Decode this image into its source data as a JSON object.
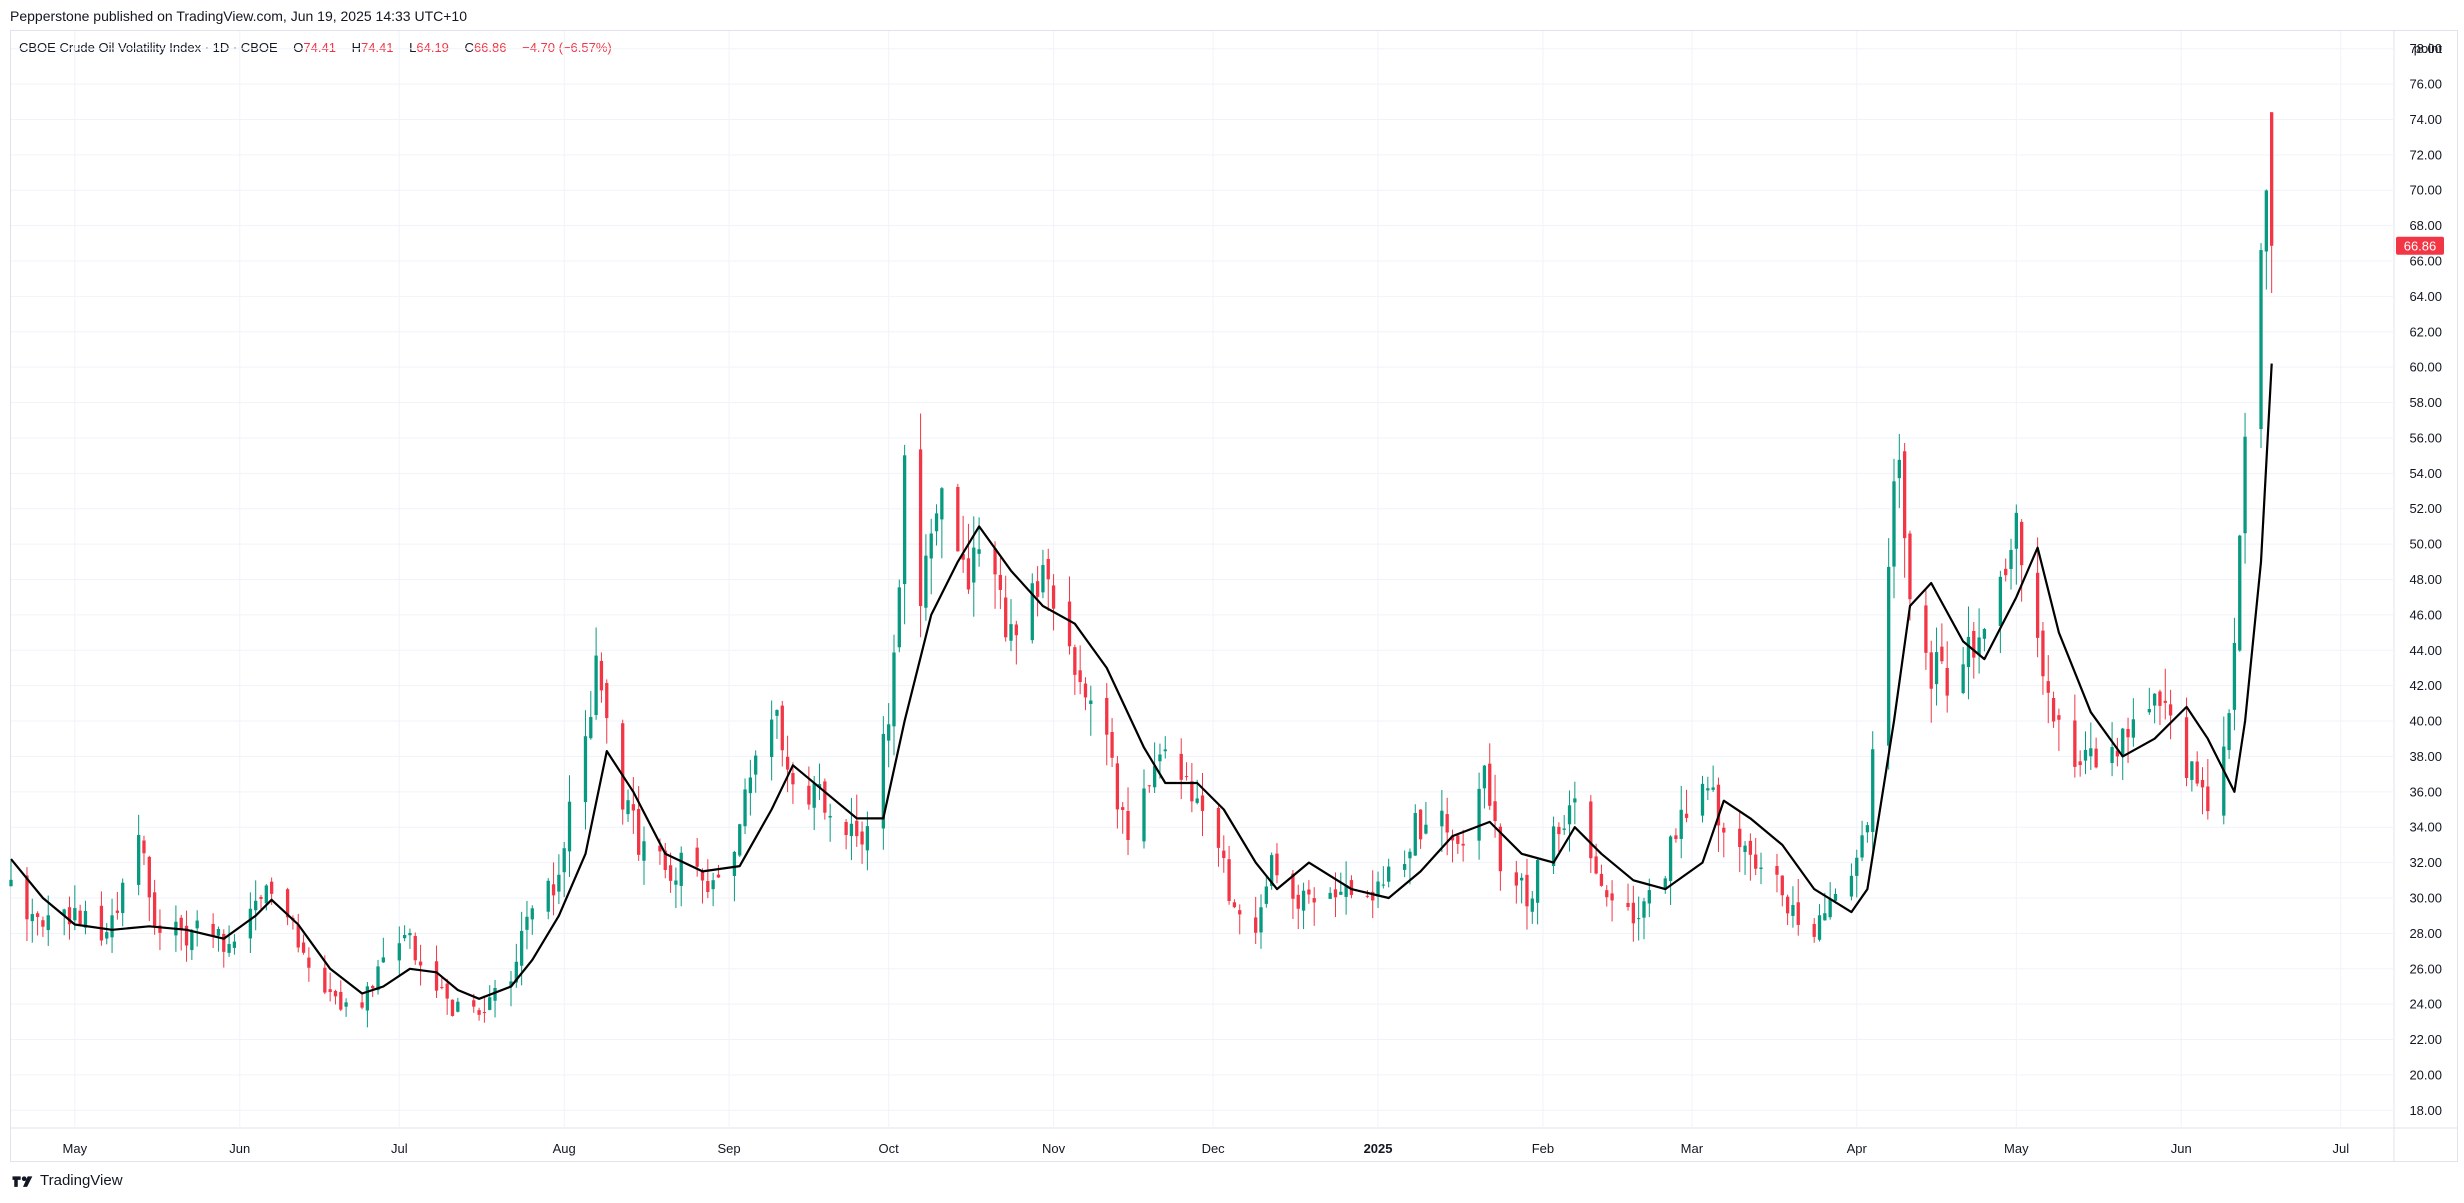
{
  "header": {
    "published": "Pepperstone published on TradingView.com, Jun 19, 2025 14:33 UTC+10"
  },
  "legend": {
    "symbol": "CBOE Crude Oil Volatility Index · 1D · CBOE",
    "o_label": "O",
    "o_value": "74.41",
    "h_label": "H",
    "h_value": "74.41",
    "l_label": "L",
    "l_value": "64.19",
    "c_label": "C",
    "c_value": "66.86",
    "change": "−4.70 (−6.57%)"
  },
  "footer": {
    "brand": "TradingView"
  },
  "colors": {
    "up": "#089981",
    "down": "#f23645",
    "ma": "#000000",
    "grid": "#f0f3fa",
    "axis_text": "#131722"
  },
  "chart_data": {
    "type": "candlestick",
    "unit_label": "point",
    "last_price": "66.86",
    "ylim": [
      17,
      79
    ],
    "y_ticks": [
      "18.00",
      "20.00",
      "22.00",
      "24.00",
      "26.00",
      "28.00",
      "30.00",
      "32.00",
      "34.00",
      "36.00",
      "38.00",
      "40.00",
      "42.00",
      "44.00",
      "46.00",
      "48.00",
      "50.00",
      "52.00",
      "54.00",
      "56.00",
      "58.00",
      "60.00",
      "62.00",
      "64.00",
      "66.00",
      "68.00",
      "70.00",
      "72.00",
      "74.00",
      "76.00",
      "78.00"
    ],
    "x_ticks": [
      {
        "label": "May",
        "date": "2024-05-01"
      },
      {
        "label": "Jun",
        "date": "2024-06-01"
      },
      {
        "label": "Jul",
        "date": "2024-07-01"
      },
      {
        "label": "Aug",
        "date": "2024-08-01"
      },
      {
        "label": "Sep",
        "date": "2024-09-01"
      },
      {
        "label": "Oct",
        "date": "2024-10-01"
      },
      {
        "label": "Nov",
        "date": "2024-11-01"
      },
      {
        "label": "Dec",
        "date": "2024-12-01"
      },
      {
        "label": "2025",
        "date": "2025-01-01"
      },
      {
        "label": "Feb",
        "date": "2025-02-01"
      },
      {
        "label": "Mar",
        "date": "2025-03-01"
      },
      {
        "label": "Apr",
        "date": "2025-04-01"
      },
      {
        "label": "May",
        "date": "2025-05-01"
      },
      {
        "label": "Jun",
        "date": "2025-06-01"
      },
      {
        "label": "Jul",
        "date": "2025-07-01"
      }
    ],
    "x_start": "2024-04-19",
    "x_end": "2025-07-11",
    "series": [
      {
        "name": "Candles",
        "path_points": [
          [
            "2024-04-19",
            30.5
          ],
          [
            "2024-04-25",
            28.5
          ],
          [
            "2024-05-01",
            28.8
          ],
          [
            "2024-05-06",
            28.0
          ],
          [
            "2024-05-09",
            29.5
          ],
          [
            "2024-05-13",
            34.0
          ],
          [
            "2024-05-16",
            28.5
          ],
          [
            "2024-05-22",
            28.0
          ],
          [
            "2024-05-27",
            28.3
          ],
          [
            "2024-05-31",
            27.0
          ],
          [
            "2024-06-04",
            30.5
          ],
          [
            "2024-06-07",
            29.8
          ],
          [
            "2024-06-10",
            28.5
          ],
          [
            "2024-06-13",
            27.0
          ],
          [
            "2024-06-17",
            25.0
          ],
          [
            "2024-06-20",
            24.0
          ],
          [
            "2024-06-25",
            24.5
          ],
          [
            "2024-06-28",
            26.5
          ],
          [
            "2024-07-03",
            27.5
          ],
          [
            "2024-07-08",
            25.0
          ],
          [
            "2024-07-11",
            24.0
          ],
          [
            "2024-07-15",
            23.5
          ],
          [
            "2024-07-18",
            24.5
          ],
          [
            "2024-07-22",
            26.0
          ],
          [
            "2024-07-25",
            28.5
          ],
          [
            "2024-07-30",
            31.0
          ],
          [
            "2024-08-02",
            34.5
          ],
          [
            "2024-08-05",
            38.5
          ],
          [
            "2024-08-07",
            44.0
          ],
          [
            "2024-08-09",
            40.0
          ],
          [
            "2024-08-12",
            36.0
          ],
          [
            "2024-08-15",
            33.0
          ],
          [
            "2024-08-20",
            31.5
          ],
          [
            "2024-08-23",
            32.0
          ],
          [
            "2024-08-28",
            31.0
          ],
          [
            "2024-09-03",
            34.0
          ],
          [
            "2024-09-06",
            38.0
          ],
          [
            "2024-09-10",
            40.5
          ],
          [
            "2024-09-13",
            37.0
          ],
          [
            "2024-09-18",
            35.5
          ],
          [
            "2024-09-23",
            34.5
          ],
          [
            "2024-09-26",
            33.5
          ],
          [
            "2024-10-01",
            40.0
          ],
          [
            "2024-10-03",
            47.0
          ],
          [
            "2024-10-04",
            54.0
          ],
          [
            "2024-10-07",
            47.5
          ],
          [
            "2024-10-09",
            51.0
          ],
          [
            "2024-10-11",
            53.5
          ],
          [
            "2024-10-15",
            48.0
          ],
          [
            "2024-10-18",
            49.0
          ],
          [
            "2024-10-22",
            47.0
          ],
          [
            "2024-10-25",
            44.0
          ],
          [
            "2024-10-30",
            48.5
          ],
          [
            "2024-11-04",
            45.0
          ],
          [
            "2024-11-07",
            41.0
          ],
          [
            "2024-11-12",
            37.5
          ],
          [
            "2024-11-15",
            33.0
          ],
          [
            "2024-11-19",
            37.0
          ],
          [
            "2024-11-22",
            38.0
          ],
          [
            "2024-11-27",
            36.0
          ],
          [
            "2024-12-02",
            33.0
          ],
          [
            "2024-12-05",
            29.5
          ],
          [
            "2024-12-09",
            27.5
          ],
          [
            "2024-12-12",
            32.0
          ],
          [
            "2024-12-17",
            30.0
          ],
          [
            "2024-12-20",
            30.5
          ],
          [
            "2024-12-27",
            30.0
          ],
          [
            "2025-01-03",
            31.0
          ],
          [
            "2025-01-08",
            34.0
          ],
          [
            "2025-01-13",
            35.0
          ],
          [
            "2025-01-16",
            33.0
          ],
          [
            "2025-01-21",
            36.5
          ],
          [
            "2025-01-24",
            32.0
          ],
          [
            "2025-01-29",
            30.0
          ],
          [
            "2025-02-03",
            33.5
          ],
          [
            "2025-02-06",
            35.5
          ],
          [
            "2025-02-11",
            31.5
          ],
          [
            "2025-02-14",
            29.5
          ],
          [
            "2025-02-19",
            28.5
          ],
          [
            "2025-02-24",
            32.0
          ],
          [
            "2025-02-27",
            35.0
          ],
          [
            "2025-03-04",
            37.0
          ],
          [
            "2025-03-07",
            34.0
          ],
          [
            "2025-03-12",
            33.0
          ],
          [
            "2025-03-17",
            30.5
          ],
          [
            "2025-03-20",
            29.0
          ],
          [
            "2025-03-25",
            28.5
          ],
          [
            "2025-03-31",
            30.5
          ],
          [
            "2025-04-03",
            35.0
          ],
          [
            "2025-04-07",
            50.0
          ],
          [
            "2025-04-09",
            56.0
          ],
          [
            "2025-04-11",
            47.0
          ],
          [
            "2025-04-15",
            43.0
          ],
          [
            "2025-04-18",
            42.5
          ],
          [
            "2025-04-23",
            44.0
          ],
          [
            "2025-04-28",
            47.5
          ],
          [
            "2025-05-01",
            51.0
          ],
          [
            "2025-05-05",
            45.0
          ],
          [
            "2025-05-08",
            40.0
          ],
          [
            "2025-05-13",
            37.0
          ],
          [
            "2025-05-16",
            38.0
          ],
          [
            "2025-05-21",
            39.0
          ],
          [
            "2025-05-26",
            41.0
          ],
          [
            "2025-05-29",
            40.0
          ],
          [
            "2025-06-03",
            37.0
          ],
          [
            "2025-06-06",
            35.0
          ],
          [
            "2025-06-10",
            41.0
          ],
          [
            "2025-06-13",
            55.0
          ],
          [
            "2025-06-17",
            71.0
          ],
          [
            "2025-06-18",
            66.86
          ]
        ]
      },
      {
        "name": "Moving average",
        "path_points": [
          [
            "2024-04-19",
            32.2
          ],
          [
            "2024-04-25",
            30.0
          ],
          [
            "2024-05-01",
            28.5
          ],
          [
            "2024-05-08",
            28.2
          ],
          [
            "2024-05-15",
            28.4
          ],
          [
            "2024-05-22",
            28.2
          ],
          [
            "2024-05-29",
            27.7
          ],
          [
            "2024-06-04",
            29.0
          ],
          [
            "2024-06-07",
            29.9
          ],
          [
            "2024-06-12",
            28.5
          ],
          [
            "2024-06-18",
            26.0
          ],
          [
            "2024-06-24",
            24.6
          ],
          [
            "2024-06-28",
            25.0
          ],
          [
            "2024-07-03",
            26.0
          ],
          [
            "2024-07-08",
            25.8
          ],
          [
            "2024-07-12",
            24.8
          ],
          [
            "2024-07-16",
            24.3
          ],
          [
            "2024-07-22",
            25.0
          ],
          [
            "2024-07-26",
            26.5
          ],
          [
            "2024-07-31",
            29.0
          ],
          [
            "2024-08-05",
            32.5
          ],
          [
            "2024-08-09",
            38.3
          ],
          [
            "2024-08-14",
            36.0
          ],
          [
            "2024-08-20",
            32.5
          ],
          [
            "2024-08-27",
            31.5
          ],
          [
            "2024-09-03",
            31.8
          ],
          [
            "2024-09-09",
            35.0
          ],
          [
            "2024-09-13",
            37.5
          ],
          [
            "2024-09-19",
            36.0
          ],
          [
            "2024-09-25",
            34.5
          ],
          [
            "2024-09-30",
            34.5
          ],
          [
            "2024-10-04",
            40.0
          ],
          [
            "2024-10-09",
            46.0
          ],
          [
            "2024-10-14",
            49.0
          ],
          [
            "2024-10-18",
            51.0
          ],
          [
            "2024-10-24",
            48.5
          ],
          [
            "2024-10-30",
            46.5
          ],
          [
            "2024-11-05",
            45.5
          ],
          [
            "2024-11-11",
            43.0
          ],
          [
            "2024-11-18",
            38.5
          ],
          [
            "2024-11-22",
            36.5
          ],
          [
            "2024-11-28",
            36.5
          ],
          [
            "2024-12-03",
            35.0
          ],
          [
            "2024-12-09",
            32.0
          ],
          [
            "2024-12-13",
            30.5
          ],
          [
            "2024-12-19",
            32.0
          ],
          [
            "2024-12-27",
            30.5
          ],
          [
            "2025-01-03",
            30.0
          ],
          [
            "2025-01-09",
            31.5
          ],
          [
            "2025-01-15",
            33.5
          ],
          [
            "2025-01-22",
            34.3
          ],
          [
            "2025-01-28",
            32.5
          ],
          [
            "2025-02-03",
            32.0
          ],
          [
            "2025-02-07",
            34.0
          ],
          [
            "2025-02-12",
            32.5
          ],
          [
            "2025-02-18",
            31.0
          ],
          [
            "2025-02-24",
            30.5
          ],
          [
            "2025-03-03",
            32.0
          ],
          [
            "2025-03-07",
            35.5
          ],
          [
            "2025-03-12",
            34.5
          ],
          [
            "2025-03-18",
            33.0
          ],
          [
            "2025-03-24",
            30.5
          ],
          [
            "2025-03-31",
            29.2
          ],
          [
            "2025-04-03",
            30.5
          ],
          [
            "2025-04-08",
            40.0
          ],
          [
            "2025-04-11",
            46.5
          ],
          [
            "2025-04-15",
            47.8
          ],
          [
            "2025-04-21",
            44.5
          ],
          [
            "2025-04-25",
            43.5
          ],
          [
            "2025-05-01",
            47.0
          ],
          [
            "2025-05-05",
            49.8
          ],
          [
            "2025-05-09",
            45.0
          ],
          [
            "2025-05-15",
            40.5
          ],
          [
            "2025-05-21",
            38.0
          ],
          [
            "2025-05-27",
            39.0
          ],
          [
            "2025-06-02",
            40.8
          ],
          [
            "2025-06-06",
            39.0
          ],
          [
            "2025-06-11",
            36.0
          ],
          [
            "2025-06-13",
            40.0
          ],
          [
            "2025-06-16",
            49.0
          ],
          [
            "2025-06-18",
            60.2
          ]
        ]
      }
    ]
  }
}
